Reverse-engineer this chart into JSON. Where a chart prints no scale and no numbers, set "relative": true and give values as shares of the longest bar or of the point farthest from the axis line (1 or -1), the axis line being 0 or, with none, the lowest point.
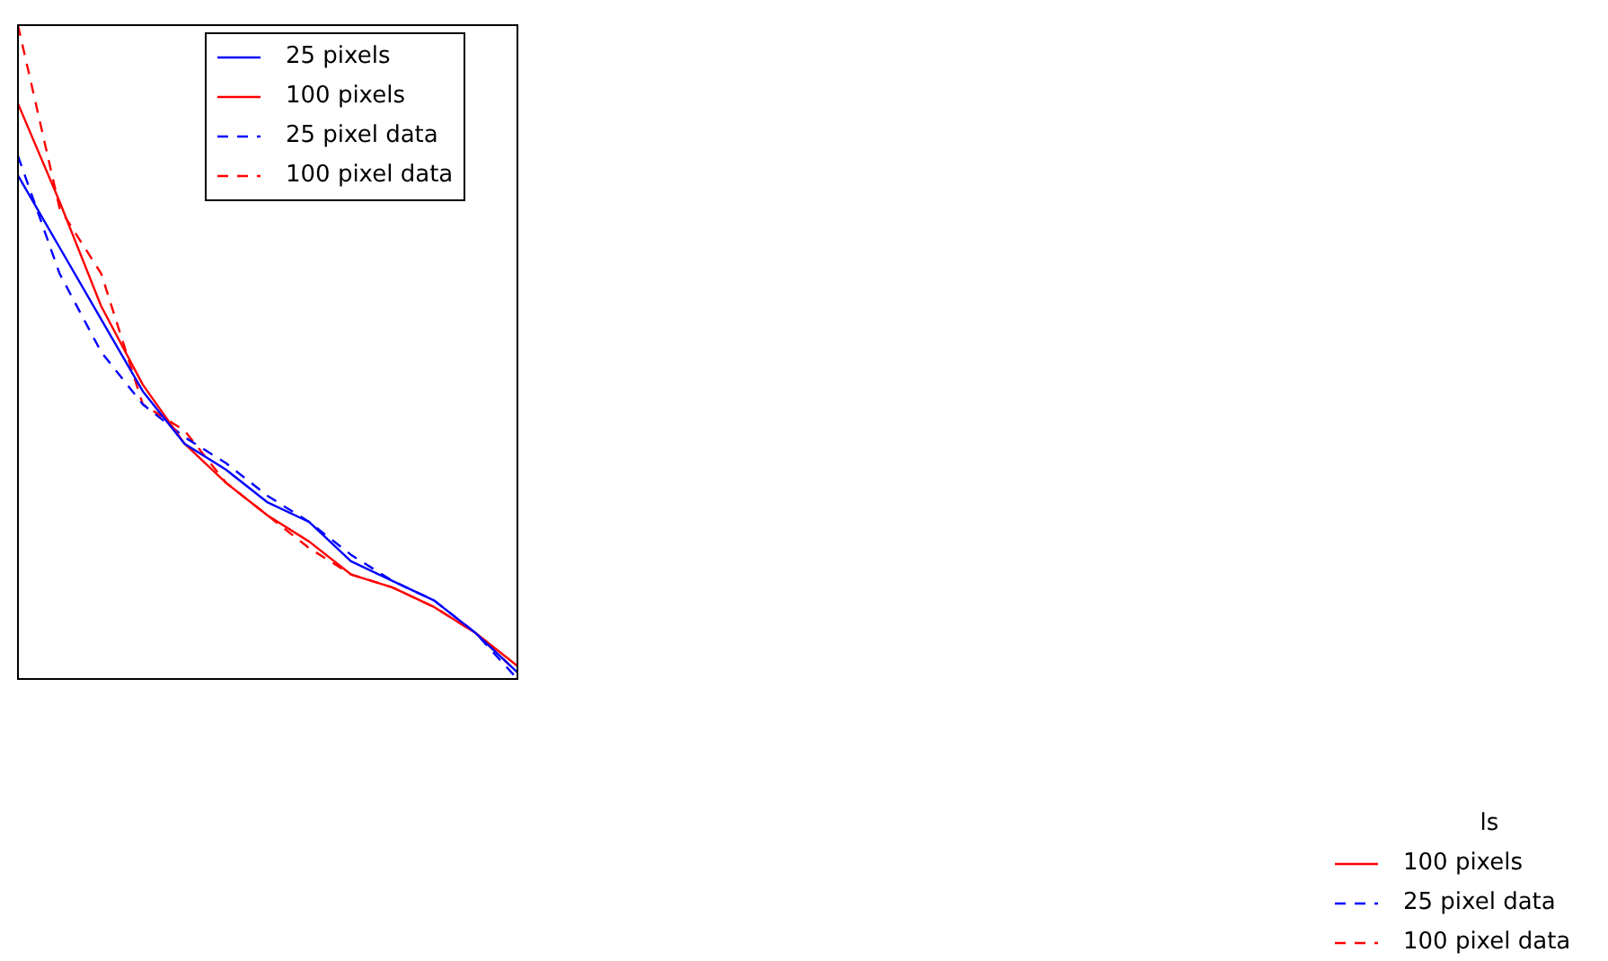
{
  "chart_data": {
    "type": "line",
    "relative": true,
    "categories": [
      null,
      null,
      null,
      null,
      null,
      null,
      null,
      null,
      null,
      null,
      null,
      null,
      null
    ],
    "series": [
      {
        "name": "25 pixels",
        "color": "#0000ff",
        "line_style": "solid",
        "values": [
          0.77,
          0.66,
          0.55,
          0.44,
          0.36,
          0.32,
          0.27,
          0.24,
          0.18,
          0.15,
          0.12,
          0.07,
          0.01
        ]
      },
      {
        "name": "100 pixels",
        "color": "#ff0000",
        "line_style": "solid",
        "values": [
          0.88,
          0.73,
          0.57,
          0.45,
          0.36,
          0.3,
          0.25,
          0.21,
          0.16,
          0.14,
          0.11,
          0.07,
          0.02
        ]
      },
      {
        "name": "25 pixel data",
        "color": "#0000ff",
        "line_style": "dashed",
        "values": [
          0.8,
          0.62,
          0.5,
          0.42,
          0.37,
          0.33,
          0.28,
          0.24,
          0.19,
          0.15,
          0.12,
          0.07,
          0.0
        ]
      },
      {
        "name": "100 pixel data",
        "color": "#ff0000",
        "line_style": "dashed",
        "values": [
          1.0,
          0.72,
          0.62,
          0.42,
          0.38,
          0.3,
          0.25,
          0.2,
          0.16,
          0.14,
          0.11,
          0.07,
          0.01
        ]
      }
    ],
    "legend": "top right",
    "grid": false,
    "marker": "none",
    "annotations": [
      "ls",
      "100 pixels",
      "25 pixel data",
      "100 pixel data"
    ]
  }
}
